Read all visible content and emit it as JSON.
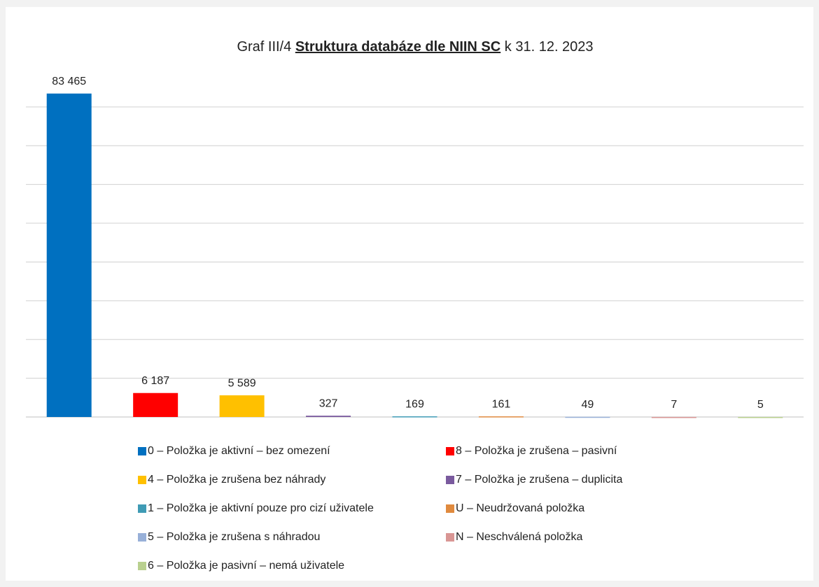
{
  "chart_data": {
    "type": "bar",
    "title": [
      "Graf III/4",
      "Struktura databáze dle NIIN SC",
      "k 31. 12. 2023"
    ],
    "categories": [
      "0 – Položka je aktivní – bez omezení",
      "8 – Položka je zrušena – pasivní",
      "4 – Položka je zrušena bez náhrady",
      "7 – Položka je zrušena – duplicita",
      "1 – Položka je aktivní pouze pro cizí uživatele",
      "U – Neudržovaná položka",
      "5 – Položka je zrušena s náhradou",
      "N – Neschválená položka",
      "6 – Položka je pasivní – nemá uživatele"
    ],
    "values": [
      83465,
      6187,
      5589,
      327,
      169,
      161,
      49,
      7,
      5
    ],
    "value_labels": [
      "83 465",
      "6 187",
      "5 589",
      "327",
      "169",
      "161",
      "49",
      "7",
      "5"
    ],
    "colors": [
      "#0070c0",
      "#ff0000",
      "#ffc000",
      "#7a5a9e",
      "#3f9bb5",
      "#e08a3e",
      "#98b0d8",
      "#d99694",
      "#b9d08f"
    ],
    "ylim": [
      0,
      90000
    ],
    "yticks": [
      0,
      10000,
      20000,
      30000,
      40000,
      50000,
      60000,
      70000,
      80000
    ],
    "grid": true,
    "legend": "bottom"
  }
}
